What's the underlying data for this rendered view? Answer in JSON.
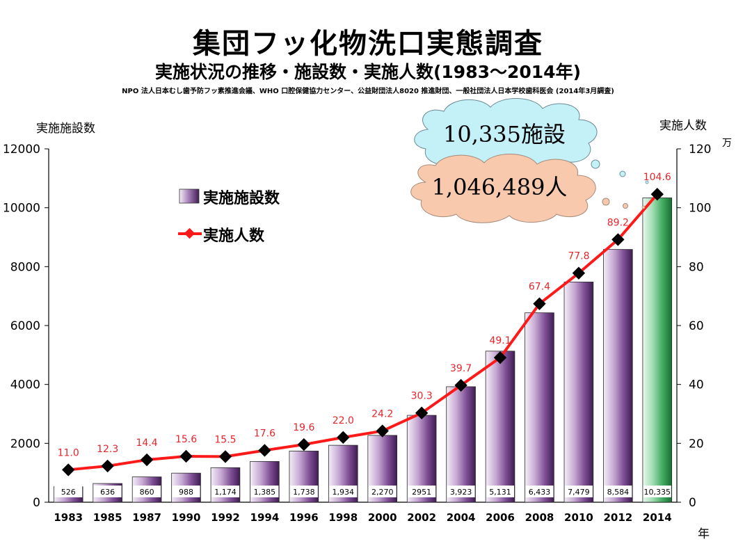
{
  "title": "集団フッ化物洗口実態調査",
  "subtitle": "実施状況の推移・施設数・実施人数(1983〜2014年)",
  "source": "NPO 法人日本むし歯予防フッ素推進会議、WHO 口腔保健協力センター、公益財団法人8020 推進財団、一般社団法人日本学校歯科医会 (2014年3月調査)",
  "chart_data": {
    "type": "bar",
    "categories": [
      "1983",
      "1985",
      "1987",
      "1990",
      "1992",
      "1994",
      "1996",
      "1998",
      "2000",
      "2002",
      "2004",
      "2006",
      "2008",
      "2010",
      "2012",
      "2014"
    ],
    "series": [
      {
        "name": "実施施設数",
        "type": "bar",
        "axis": "left",
        "values": [
          526,
          636,
          860,
          988,
          1174,
          1385,
          1738,
          1934,
          2270,
          2951,
          3923,
          5131,
          6433,
          7479,
          8584,
          10335
        ],
        "value_labels": [
          "526",
          "636",
          "860",
          "988",
          "1,174",
          "1,385",
          "1,738",
          "1,934",
          "2,270",
          "2951",
          "3,923",
          "5,131",
          "6,433",
          "7,479",
          "8,584",
          "10,335"
        ]
      },
      {
        "name": "実施人数",
        "type": "line",
        "axis": "right",
        "values": [
          11.0,
          12.3,
          14.4,
          15.6,
          15.5,
          17.6,
          19.6,
          22.0,
          24.2,
          30.3,
          39.7,
          49.1,
          67.4,
          77.8,
          89.2,
          104.6
        ],
        "value_labels": [
          "11.0",
          "12.3",
          "14.4",
          "15.6",
          "15.5",
          "17.6",
          "19.6",
          "22.0",
          "24.2",
          "30.3",
          "39.7",
          "49.1",
          "67.4",
          "77.8",
          "89.2",
          "104.6"
        ]
      }
    ],
    "ylabel_left": "実施施設数",
    "ylabel_right": "実施人数",
    "right_unit": "万",
    "xlabel_unit": "年",
    "ylim_left": [
      0,
      12000
    ],
    "ylim_right": [
      0,
      120
    ],
    "yticks_left": [
      "0",
      "2000",
      "4000",
      "6000",
      "8000",
      "10000",
      "12000"
    ],
    "yticks_right": [
      "0",
      "20",
      "40",
      "60",
      "80",
      "100",
      "120"
    ],
    "legend_position": "top-left",
    "bar_color": "#8a5a9c",
    "last_bar_color": "#4caf6a",
    "line_color": "#ff1a1a",
    "marker_color": "#000000",
    "label_color": "#e8242b"
  },
  "callouts": [
    {
      "text": "10,335施設",
      "fill": "#c4f0f7"
    },
    {
      "text": "1,046,489人",
      "fill": "#f9c9ad"
    }
  ]
}
